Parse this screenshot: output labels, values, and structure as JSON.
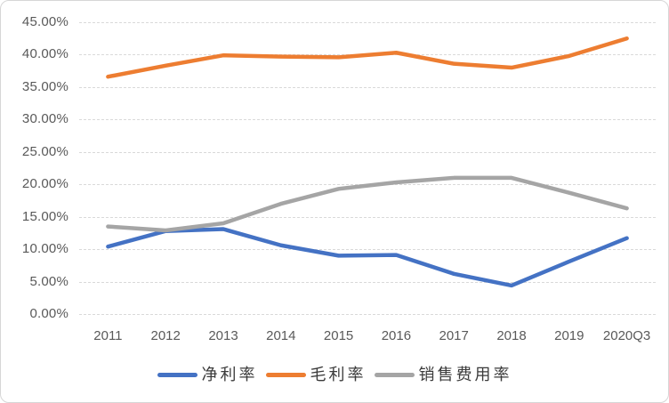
{
  "chart_data": {
    "type": "line",
    "title": "",
    "xlabel": "",
    "ylabel": "",
    "categories": [
      "2011",
      "2012",
      "2013",
      "2014",
      "2015",
      "2016",
      "2017",
      "2018",
      "2019",
      "2020Q3"
    ],
    "series": [
      {
        "name": "净利率",
        "color": "#4472C4",
        "values": [
          10.4,
          12.8,
          13.1,
          10.6,
          9.0,
          9.1,
          6.2,
          4.4,
          8.1,
          11.7
        ]
      },
      {
        "name": "毛利率",
        "color": "#ED7D31",
        "values": [
          36.6,
          38.3,
          39.9,
          39.7,
          39.6,
          40.3,
          38.6,
          38.0,
          39.8,
          42.5
        ]
      },
      {
        "name": "销售费用率",
        "color": "#A5A5A5",
        "values": [
          13.5,
          12.9,
          14.0,
          17.0,
          19.3,
          20.3,
          21.0,
          21.0,
          18.7,
          16.3
        ]
      }
    ],
    "ylim": [
      0,
      45
    ],
    "ytick_step": 5,
    "ytick_labels": [
      "0.00%",
      "5.00%",
      "10.00%",
      "15.00%",
      "20.00%",
      "25.00%",
      "30.00%",
      "35.00%",
      "40.00%",
      "45.00%"
    ],
    "grid": "horizontal-dashed",
    "legend_position": "bottom",
    "gridline_color": "#D9D9D9",
    "axis_label_color": "#595959"
  }
}
